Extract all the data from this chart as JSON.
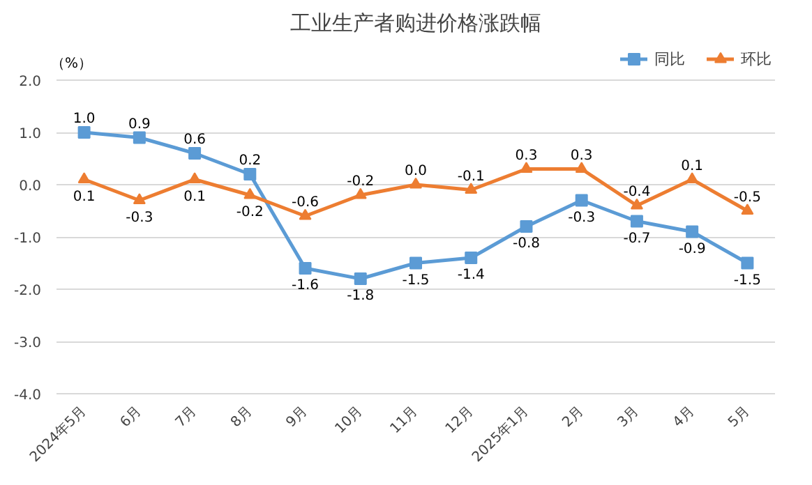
{
  "chart_data": {
    "type": "line",
    "title": "工业生产者购进价格涨跌幅",
    "ylabel": "（%）",
    "categories": [
      "2024年5月",
      "6月",
      "7月",
      "8月",
      "9月",
      "10月",
      "11月",
      "12月",
      "2025年1月",
      "2月",
      "3月",
      "4月",
      "5月"
    ],
    "series": [
      {
        "name": "同比",
        "color": "#5b9bd5",
        "marker": "square",
        "values": [
          1.0,
          0.9,
          0.6,
          0.2,
          -1.6,
          -1.8,
          -1.5,
          -1.4,
          -0.8,
          -0.3,
          -0.7,
          -0.9,
          -1.5
        ],
        "value_labels": [
          "1.0",
          "0.9",
          "0.6",
          "0.2",
          "-1.6",
          "-1.8",
          "-1.5",
          "-1.4",
          "-0.8",
          "-0.3",
          "-0.7",
          "-0.9",
          "-1.5"
        ]
      },
      {
        "name": "环比",
        "color": "#ed7d31",
        "marker": "triangle",
        "values": [
          0.1,
          -0.3,
          0.1,
          -0.2,
          -0.6,
          -0.2,
          0.0,
          -0.1,
          0.3,
          0.3,
          -0.4,
          0.1,
          -0.5
        ],
        "value_labels": [
          "0.1",
          "-0.3",
          "0.1",
          "-0.2",
          "-0.6",
          "-0.2",
          "0.0",
          "-0.1",
          "0.3",
          "0.3",
          "-0.4",
          "0.1",
          "-0.5"
        ]
      }
    ],
    "ylim": [
      -4.0,
      2.0
    ],
    "yticks": [
      {
        "value": -4,
        "label": "-4.0"
      },
      {
        "value": -3,
        "label": "-3.0"
      },
      {
        "value": -2,
        "label": "-2.0"
      },
      {
        "value": -1,
        "label": "-1.0"
      },
      {
        "value": 0,
        "label": "0.0"
      },
      {
        "value": 1,
        "label": "1.0"
      },
      {
        "value": 2,
        "label": "2.0"
      }
    ],
    "grid": "y",
    "legend": "top right",
    "line_style": "solid"
  }
}
